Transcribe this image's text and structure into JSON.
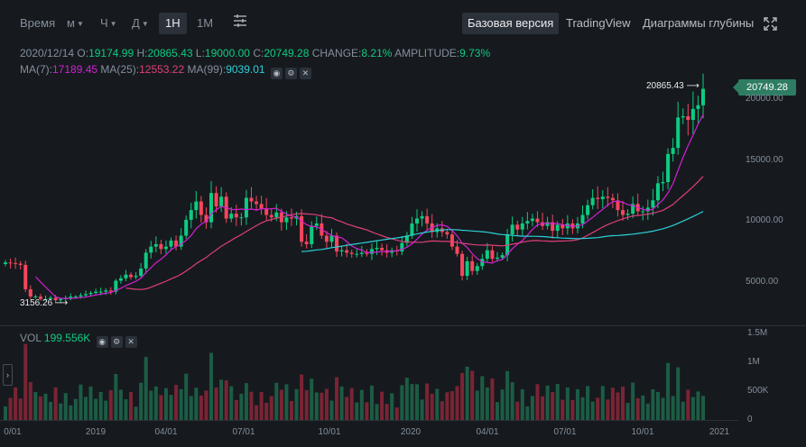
{
  "toolbar": {
    "time_label": "Время",
    "intervals": [
      "м",
      "Ч",
      "Д",
      "1Н",
      "1М"
    ],
    "active_interval": "1Н",
    "views": [
      "Базовая версия",
      "TradingView",
      "Диаграммы глубины"
    ],
    "active_view": "Базовая версия",
    "settings_icon": "sliders-icon",
    "fullscreen_icon": "expand-icon"
  },
  "ohlc": {
    "date": "2020/12/14",
    "o_label": "O:",
    "o": "19174.99",
    "h_label": "H:",
    "h": "20865.43",
    "l_label": "L:",
    "l": "19000.00",
    "c_label": "C:",
    "c": "20749.28",
    "change_label": "CHANGE:",
    "change": "8.21%",
    "amplitude_label": "AMPLITUDE:",
    "amplitude": "9.73%"
  },
  "ma": {
    "ma7_label": "MA(7):",
    "ma7": "17189.45",
    "ma25_label": "MA(25):",
    "ma25": "12553.22",
    "ma99_label": "MA(99):",
    "ma99": "9039.01"
  },
  "volume": {
    "label": "VOL",
    "value": "199.556K"
  },
  "current_price": "20749.28",
  "high_marker": "20865.43",
  "low_marker": "3156.26",
  "colors": {
    "up": "#0ecb81",
    "down": "#f6465d",
    "ma7": "#d31fd6",
    "ma25": "#e03e7a",
    "ma99": "#2ad0d8",
    "bg": "#161a1e"
  },
  "chart_data": {
    "type": "candlestick",
    "price_axis_ticks": [
      "20000.00",
      "15000.00",
      "10000.00",
      "5000.00"
    ],
    "volume_axis_ticks": [
      "1.5M",
      "1M",
      "500K",
      "0"
    ],
    "x_tick_labels": [
      "0/01",
      "2019",
      "04/01",
      "07/01",
      "10/01",
      "2020",
      "04/01",
      "07/01",
      "10/01",
      "2021"
    ],
    "price_range": [
      2000,
      22000
    ],
    "volume_range": [
      0,
      1500000
    ],
    "weekly_close": [
      6500,
      6450,
      6400,
      6300,
      4300,
      3700,
      3700,
      3500,
      3500,
      3600,
      3400,
      3500,
      3600,
      3700,
      3700,
      3800,
      3900,
      4000,
      4100,
      4100,
      4200,
      4100,
      5000,
      5200,
      5500,
      5300,
      5400,
      6000,
      7300,
      7800,
      8000,
      7600,
      7800,
      8300,
      7800,
      8700,
      10000,
      10800,
      11500,
      10400,
      9800,
      12200,
      11100,
      11900,
      10100,
      10500,
      10200,
      10200,
      11800,
      11500,
      11300,
      10900,
      10400,
      10200,
      10600,
      9800,
      10200,
      10100,
      10300,
      8200,
      8000,
      9500,
      9700,
      8700,
      8200,
      8700,
      7400,
      7500,
      7300,
      7200,
      7200,
      7300,
      7200,
      7600,
      7700,
      7500,
      7300,
      7500,
      7400,
      8100,
      8700,
      9700,
      10100,
      10300,
      9700,
      9000,
      9300,
      9000,
      8800,
      7800,
      7200,
      5400,
      6600,
      5800,
      6200,
      6800,
      7500,
      6800,
      6900,
      7100,
      8800,
      9600,
      9200,
      9700,
      9900,
      10100,
      9800,
      9500,
      9800,
      9100,
      9600,
      9300,
      9700,
      9300,
      9700,
      10400,
      11200,
      11800,
      11700,
      11900,
      11800,
      11600,
      10800,
      10400,
      10500,
      11300,
      10700,
      10700,
      11000,
      11600,
      13000,
      13100,
      15400,
      15900,
      18400,
      18500,
      18200,
      19100,
      19400,
      20749
    ]
  }
}
